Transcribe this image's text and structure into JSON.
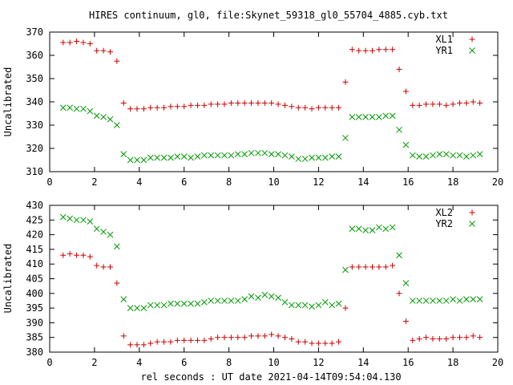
{
  "page": {
    "title": "HIRES continuum, gl0, file:Skynet_59318_gl0_55704_4885.cyb.txt",
    "xlabel": "rel seconds : UT date 2021-04-14T09:54:04.130"
  },
  "chart_data": [
    {
      "type": "scatter",
      "ylabel": "Uncalibrated",
      "xlim": [
        0,
        20
      ],
      "ylim": [
        310,
        370
      ],
      "xticks": [
        "0",
        "2",
        "4",
        "6",
        "8",
        "10",
        "12",
        "14",
        "16",
        "18",
        "20"
      ],
      "yticks": [
        "310",
        "320",
        "330",
        "340",
        "350",
        "360",
        "370"
      ],
      "grid": false,
      "legend_position": "top-right",
      "series": [
        {
          "name": "XL1",
          "marker": "plus",
          "color": "#cc0000",
          "x": [
            0.6,
            0.9,
            1.2,
            1.5,
            1.8,
            2.1,
            2.4,
            2.7,
            3.0,
            3.3,
            3.6,
            3.9,
            4.2,
            4.5,
            4.8,
            5.1,
            5.4,
            5.7,
            6.0,
            6.3,
            6.6,
            6.9,
            7.2,
            7.5,
            7.8,
            8.1,
            8.4,
            8.7,
            9.0,
            9.3,
            9.6,
            9.9,
            10.2,
            10.5,
            10.8,
            11.1,
            11.4,
            11.7,
            12.0,
            12.3,
            12.6,
            12.9,
            13.2,
            13.5,
            13.8,
            14.1,
            14.4,
            14.7,
            15.0,
            15.3,
            15.6,
            15.9,
            16.2,
            16.5,
            16.8,
            17.1,
            17.4,
            17.7,
            18.0,
            18.3,
            18.6,
            18.9,
            19.2
          ],
          "y": [
            365.5,
            365.5,
            366,
            365.5,
            365,
            362,
            362,
            361.5,
            357.5,
            339.5,
            337,
            337,
            337,
            337.5,
            337.5,
            337.5,
            338,
            338,
            338,
            338.5,
            338.5,
            338.5,
            339,
            339,
            339,
            339.5,
            339.5,
            339.5,
            339.5,
            339.5,
            339.5,
            339.5,
            339,
            338.5,
            338,
            337.5,
            337.5,
            337,
            337.5,
            337.5,
            337.5,
            337.5,
            348.5,
            362.5,
            362,
            362,
            362,
            362.5,
            362.5,
            362.5,
            354,
            344.5,
            338.5,
            338.5,
            339,
            339,
            339,
            338.5,
            339,
            339.5,
            339.5,
            340,
            339.5
          ]
        },
        {
          "name": "YR1",
          "marker": "cross",
          "color": "#009900",
          "x": [
            0.6,
            0.9,
            1.2,
            1.5,
            1.8,
            2.1,
            2.4,
            2.7,
            3.0,
            3.3,
            3.6,
            3.9,
            4.2,
            4.5,
            4.8,
            5.1,
            5.4,
            5.7,
            6.0,
            6.3,
            6.6,
            6.9,
            7.2,
            7.5,
            7.8,
            8.1,
            8.4,
            8.7,
            9.0,
            9.3,
            9.6,
            9.9,
            10.2,
            10.5,
            10.8,
            11.1,
            11.4,
            11.7,
            12.0,
            12.3,
            12.6,
            12.9,
            13.2,
            13.5,
            13.8,
            14.1,
            14.4,
            14.7,
            15.0,
            15.3,
            15.6,
            15.9,
            16.2,
            16.5,
            16.8,
            17.1,
            17.4,
            17.7,
            18.0,
            18.3,
            18.6,
            18.9,
            19.2
          ],
          "y": [
            337.5,
            337.5,
            337,
            337,
            336,
            334,
            333.5,
            332.5,
            330,
            317.5,
            315,
            315,
            315,
            316,
            316,
            316,
            316,
            316.5,
            316.5,
            316,
            316.5,
            317,
            317,
            317,
            317,
            317,
            317.5,
            317.5,
            318,
            318,
            318,
            317.5,
            317.5,
            317,
            316.5,
            315.5,
            315.5,
            316,
            316,
            316,
            316.5,
            316.5,
            324.5,
            333.5,
            333.5,
            333.5,
            333.5,
            333.5,
            334,
            334,
            328,
            321.5,
            317,
            316.5,
            316.5,
            317,
            317.5,
            317.5,
            317,
            317,
            316.5,
            317,
            317.5
          ]
        }
      ]
    },
    {
      "type": "scatter",
      "ylabel": "Uncalibrated",
      "xlim": [
        0,
        20
      ],
      "ylim": [
        380,
        430
      ],
      "xticks": [
        "0",
        "2",
        "4",
        "6",
        "8",
        "10",
        "12",
        "14",
        "16",
        "18",
        "20"
      ],
      "yticks": [
        "380",
        "385",
        "390",
        "395",
        "400",
        "405",
        "410",
        "415",
        "420",
        "425",
        "430"
      ],
      "grid": false,
      "legend_position": "top-right",
      "series": [
        {
          "name": "XL2",
          "marker": "plus",
          "color": "#cc0000",
          "x": [
            0.6,
            0.9,
            1.2,
            1.5,
            1.8,
            2.1,
            2.4,
            2.7,
            3.0,
            3.3,
            3.6,
            3.9,
            4.2,
            4.5,
            4.8,
            5.1,
            5.4,
            5.7,
            6.0,
            6.3,
            6.6,
            6.9,
            7.2,
            7.5,
            7.8,
            8.1,
            8.4,
            8.7,
            9.0,
            9.3,
            9.6,
            9.9,
            10.2,
            10.5,
            10.8,
            11.1,
            11.4,
            11.7,
            12.0,
            12.3,
            12.6,
            12.9,
            13.2,
            13.5,
            13.8,
            14.1,
            14.4,
            14.7,
            15.0,
            15.3,
            15.6,
            15.9,
            16.2,
            16.5,
            16.8,
            17.1,
            17.4,
            17.7,
            18.0,
            18.3,
            18.6,
            18.9,
            19.2
          ],
          "y": [
            413,
            413.5,
            413,
            413,
            412.5,
            409.5,
            409,
            409,
            403.5,
            385.5,
            382.5,
            382.5,
            382.5,
            383,
            383.5,
            383.5,
            383.5,
            384,
            384,
            384,
            384,
            384,
            384.5,
            385,
            385,
            385,
            385,
            385,
            385.5,
            385.5,
            385.5,
            386,
            385.5,
            385,
            384.5,
            383.5,
            383.5,
            383,
            383,
            383,
            383,
            383.5,
            395,
            409,
            409,
            409,
            409,
            409,
            409,
            409.5,
            400,
            390.5,
            384,
            384.5,
            385,
            384.5,
            384.5,
            384.5,
            385,
            385,
            385,
            385.5,
            385
          ]
        },
        {
          "name": "YR2",
          "marker": "cross",
          "color": "#009900",
          "x": [
            0.6,
            0.9,
            1.2,
            1.5,
            1.8,
            2.1,
            2.4,
            2.7,
            3.0,
            3.3,
            3.6,
            3.9,
            4.2,
            4.5,
            4.8,
            5.1,
            5.4,
            5.7,
            6.0,
            6.3,
            6.6,
            6.9,
            7.2,
            7.5,
            7.8,
            8.1,
            8.4,
            8.7,
            9.0,
            9.3,
            9.6,
            9.9,
            10.2,
            10.5,
            10.8,
            11.1,
            11.4,
            11.7,
            12.0,
            12.3,
            12.6,
            12.9,
            13.2,
            13.5,
            13.8,
            14.1,
            14.4,
            14.7,
            15.0,
            15.3,
            15.6,
            15.9,
            16.2,
            16.5,
            16.8,
            17.1,
            17.4,
            17.7,
            18.0,
            18.3,
            18.6,
            18.9,
            19.2
          ],
          "y": [
            426,
            425.5,
            425,
            425,
            424.5,
            422,
            421,
            420,
            416,
            398,
            395,
            395,
            395,
            396,
            396,
            396,
            396.5,
            396.5,
            396.5,
            396.5,
            396.5,
            397,
            397.5,
            397.5,
            397.5,
            397.5,
            397.5,
            398,
            399,
            398.5,
            399.5,
            399,
            398.5,
            397,
            396,
            396,
            396,
            395.5,
            396,
            397,
            396,
            396.5,
            408,
            422,
            422,
            421.5,
            421.5,
            422.5,
            422,
            422.5,
            413,
            403.5,
            397.5,
            397.5,
            397.5,
            397.5,
            397.5,
            397.5,
            398,
            397.5,
            398,
            398,
            398
          ]
        }
      ]
    }
  ]
}
